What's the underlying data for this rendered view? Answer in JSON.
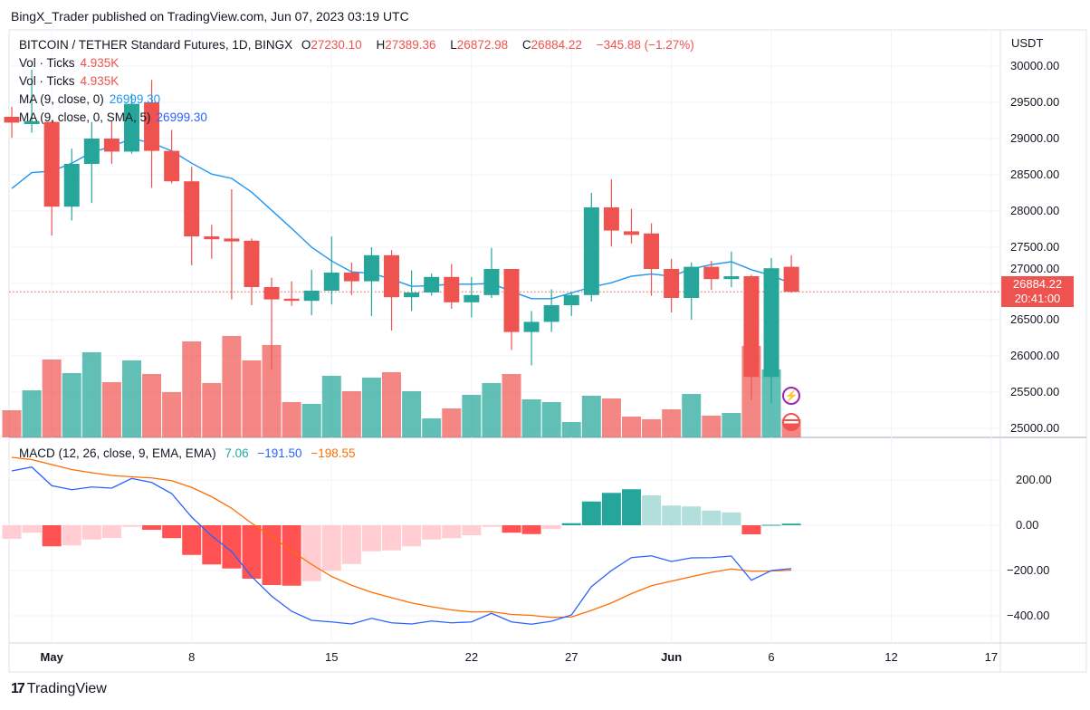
{
  "publisher_line": "BingX_Trader published on TradingView.com, Jun 07, 2023 03:19 UTC",
  "legend": {
    "symbol": "BITCOIN / TETHER Standard Futures, 1D, BINGX",
    "o_label": "O",
    "o": "27230.10",
    "h_label": "H",
    "h": "27389.36",
    "l_label": "L",
    "l": "26872.98",
    "c_label": "C",
    "c": "26884.22",
    "change": "−345.88 (−1.27%)",
    "vol1_label": "Vol · Ticks",
    "vol1_value": "4.935K",
    "vol2_label": "Vol · Ticks",
    "vol2_value": "4.935K",
    "ma1_label": "MA (9, close, 0)",
    "ma1_value": "26999.30",
    "ma2_label": "MA (9, close, 0, SMA, 5)",
    "ma2_value": "26999.30",
    "macd_label": "MACD (12, 26, close, 9, EMA, EMA)",
    "macd_hist": "7.06",
    "macd_value": "−191.50",
    "macd_signal": "−198.55"
  },
  "price_axis": {
    "currency": "USDT",
    "last_price": "26884.22",
    "countdown": "20:41:00"
  },
  "logo_text": "TradingView",
  "colors": {
    "up": "#26a69a",
    "down": "#ef5350",
    "ma": "#2196f3",
    "macd": "#2962ff",
    "signal": "#ff6d00",
    "hist_up_strong": "#26a69a",
    "hist_up_weak": "#b2dfdb",
    "hist_down_strong": "#ff5252",
    "hist_down_weak": "#ffcdd2"
  },
  "chart_data": {
    "type": "candlestick",
    "title": "BITCOIN / TETHER Standard Futures, 1D, BINGX",
    "x_unit": "day offset from first candle (Apr 29, 2023)",
    "ylim": [
      24950,
      30250
    ],
    "y_ticks": [
      "25000.00",
      "25500.00",
      "26000.00",
      "26500.00",
      "27000.00",
      "27500.00",
      "28000.00",
      "28500.00",
      "29000.00",
      "29500.00",
      "30000.00"
    ],
    "x_ticks": [
      {
        "label": "May",
        "day": 2,
        "bold": true
      },
      {
        "label": "8",
        "day": 9
      },
      {
        "label": "15",
        "day": 16
      },
      {
        "label": "22",
        "day": 23
      },
      {
        "label": "27",
        "day": 28
      },
      {
        "label": "Jun",
        "day": 33,
        "bold": true
      },
      {
        "label": "6",
        "day": 38
      },
      {
        "label": "12",
        "day": 44
      },
      {
        "label": "17",
        "day": 49
      }
    ],
    "ohlc": [
      [
        29300,
        29440,
        29010,
        29220
      ],
      [
        29200,
        29950,
        29080,
        29240
      ],
      [
        29230,
        29250,
        27660,
        28060
      ],
      [
        28060,
        28860,
        27870,
        28650
      ],
      [
        28650,
        29230,
        28110,
        29000
      ],
      [
        29000,
        29250,
        28650,
        28820
      ],
      [
        28820,
        29620,
        28790,
        29480
      ],
      [
        29500,
        29810,
        28320,
        28830
      ],
      [
        28830,
        29120,
        28380,
        28410
      ],
      [
        28410,
        28610,
        27250,
        27650
      ],
      [
        27650,
        27810,
        27340,
        27610
      ],
      [
        27620,
        28300,
        26780,
        27580
      ],
      [
        27590,
        27620,
        26700,
        26950
      ],
      [
        26950,
        27080,
        25810,
        26780
      ],
      [
        26790,
        27030,
        26690,
        26760
      ],
      [
        26760,
        27190,
        26560,
        26900
      ],
      [
        26900,
        27650,
        26710,
        27150
      ],
      [
        27150,
        27290,
        26840,
        27030
      ],
      [
        27030,
        27500,
        26550,
        27390
      ],
      [
        27390,
        27460,
        26350,
        26810
      ],
      [
        26810,
        27180,
        26620,
        26875
      ],
      [
        26875,
        27140,
        26830,
        27090
      ],
      [
        27090,
        27270,
        26650,
        26740
      ],
      [
        26740,
        27090,
        26530,
        26840
      ],
      [
        26840,
        27490,
        26800,
        27200
      ],
      [
        27200,
        27200,
        26080,
        26330
      ],
      [
        26330,
        26620,
        25870,
        26470
      ],
      [
        26470,
        26920,
        26330,
        26700
      ],
      [
        26700,
        26870,
        26550,
        26840
      ],
      [
        26840,
        28250,
        26750,
        28050
      ],
      [
        28050,
        28440,
        27510,
        27730
      ],
      [
        27720,
        28030,
        27550,
        27670
      ],
      [
        27690,
        27830,
        26830,
        27200
      ],
      [
        27200,
        27340,
        26600,
        26800
      ],
      [
        26800,
        27290,
        26500,
        27230
      ],
      [
        27230,
        27310,
        26910,
        27060
      ],
      [
        27060,
        27440,
        26950,
        27100
      ],
      [
        27100,
        27120,
        25390,
        25710
      ],
      [
        25710,
        27350,
        25350,
        27210
      ],
      [
        27230.1,
        27389.36,
        26872.98,
        26884.22
      ]
    ],
    "volume_k": [
      7.41,
      12.84,
      21.24,
      17.54,
      23.22,
      15.07,
      21.0,
      17.29,
      12.35,
      26.18,
      14.82,
      27.66,
      21.0,
      25.19,
      9.63,
      9.14,
      16.8,
      12.6,
      16.3,
      17.78,
      12.6,
      5.19,
      7.9,
      11.61,
      14.82,
      17.29,
      10.37,
      9.63,
      4.2,
      11.36,
      10.62,
      5.68,
      4.94,
      7.66,
      11.86,
      5.93,
      6.67,
      24.95,
      18.53,
      4.935
    ],
    "ma9": [
      28310,
      28530,
      28550,
      28660,
      28810,
      28890,
      29000,
      28940,
      28830,
      28660,
      28510,
      28450,
      28260,
      28010,
      27760,
      27500,
      27310,
      27160,
      27140,
      27060,
      26960,
      26970,
      26990,
      26990,
      27000,
      26890,
      26790,
      26790,
      26870,
      26950,
      27010,
      27100,
      27130,
      27100,
      27200,
      27260,
      27300,
      27190,
      27110,
      26999.3
    ],
    "macd": {
      "ylim": [
        -460,
        310
      ],
      "y_ticks": [
        "200.00",
        "0.00",
        "−200.00",
        "−400.00"
      ],
      "y_tick_values": [
        200,
        0,
        -200,
        -400
      ],
      "macd": [
        240,
        257,
        175,
        157,
        169,
        164,
        207,
        189,
        140,
        36,
        -47,
        -116,
        -227,
        -313,
        -380,
        -420,
        -427,
        -436,
        -411,
        -431,
        -436,
        -423,
        -431,
        -427,
        -389,
        -427,
        -437,
        -424,
        -396,
        -271,
        -200,
        -143,
        -135,
        -160,
        -144,
        -143,
        -136,
        -243,
        -200,
        -191.5
      ],
      "signal": [
        300,
        290,
        268,
        246,
        232,
        220,
        214,
        209,
        197,
        167,
        126,
        75,
        9,
        -49,
        -113,
        -173,
        -226,
        -265,
        -296,
        -320,
        -343,
        -360,
        -374,
        -383,
        -382,
        -394,
        -398,
        -407,
        -405,
        -376,
        -343,
        -302,
        -267,
        -247,
        -227,
        -208,
        -193,
        -203,
        -202,
        -198.55
      ],
      "histogram": [
        -60,
        -33,
        -93,
        -89,
        -63,
        -56,
        -7,
        -20,
        -57,
        -131,
        -173,
        -191,
        -236,
        -264,
        -267,
        -247,
        -201,
        -171,
        -115,
        -111,
        -93,
        -63,
        -57,
        -44,
        -7,
        -33,
        -39,
        -17,
        9,
        105,
        143,
        159,
        132,
        87,
        83,
        65,
        57,
        -40,
        2,
        7.06
      ]
    }
  }
}
